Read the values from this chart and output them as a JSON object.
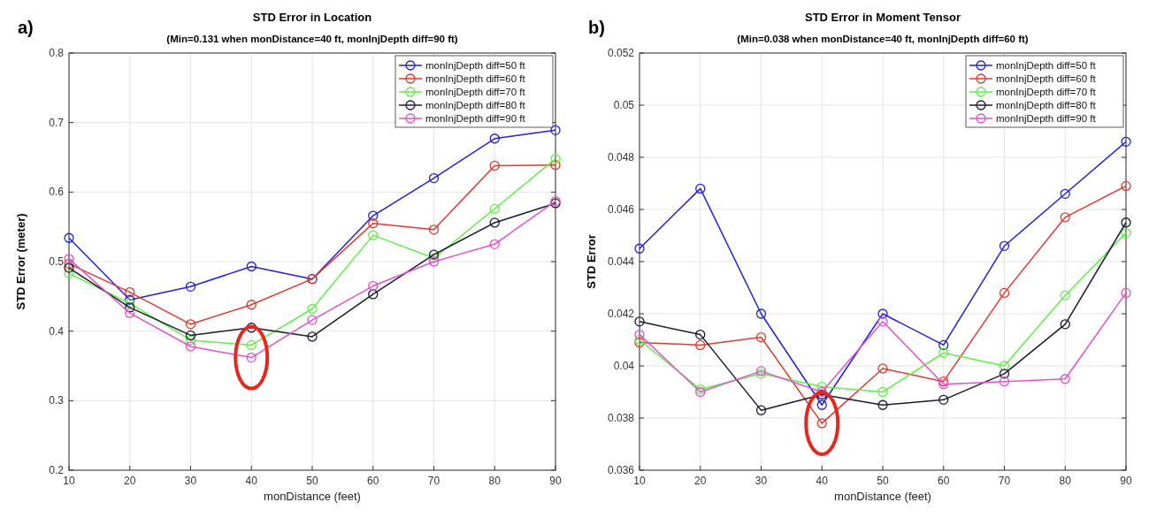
{
  "chart_data": [
    {
      "type": "line",
      "title": "STD Error in Location",
      "subtitle": "(Min=0.131 when monDistance=40 ft, monInjDepth diff=90 ft)",
      "xlabel": "monDistance (feet)",
      "ylabel": "STD Error (meter)",
      "annotations": [
        "a)"
      ],
      "x": [
        10,
        20,
        30,
        40,
        50,
        60,
        70,
        80,
        90
      ],
      "xlim": [
        10,
        90
      ],
      "xticks": [
        10,
        20,
        30,
        40,
        50,
        60,
        70,
        80,
        90
      ],
      "ylim": [
        0.2,
        0.8
      ],
      "yticks": [
        0.2,
        0.3,
        0.4,
        0.5,
        0.6,
        0.7,
        0.8
      ],
      "grid": true,
      "legend": "top right",
      "marker": "circle",
      "line_style": "solid",
      "series": [
        {
          "name": "monInjDepth diff=50 ft",
          "color": "#1f1fe6",
          "values": [
            0.534,
            0.445,
            0.464,
            0.493,
            0.475,
            0.566,
            0.62,
            0.677,
            0.689
          ]
        },
        {
          "name": "monInjDepth diff=60 ft",
          "color": "#e6372b",
          "values": [
            0.497,
            0.456,
            0.41,
            0.438,
            0.475,
            0.555,
            0.546,
            0.638,
            0.639
          ]
        },
        {
          "name": "monInjDepth diff=70 ft",
          "color": "#5ef046",
          "values": [
            0.483,
            0.44,
            0.387,
            0.38,
            0.432,
            0.538,
            0.505,
            0.576,
            0.648
          ]
        },
        {
          "name": "monInjDepth diff=80 ft",
          "color": "#1a1a2e",
          "values": [
            0.491,
            0.434,
            0.394,
            0.405,
            0.392,
            0.453,
            0.51,
            0.556,
            0.584
          ]
        },
        {
          "name": "monInjDepth diff=90 ft",
          "color": "#e64fd0",
          "values": [
            0.504,
            0.426,
            0.378,
            0.362,
            0.416,
            0.465,
            0.5,
            0.525,
            0.587
          ]
        }
      ]
    },
    {
      "type": "line",
      "title": "STD Error in Moment Tensor",
      "subtitle": "(Min=0.038 when monDistance=40 ft, monInjDepth diff=60 ft)",
      "xlabel": "monDistance (feet)",
      "ylabel": "STD Error",
      "annotations": [
        "b)"
      ],
      "x": [
        10,
        20,
        30,
        40,
        50,
        60,
        70,
        80,
        90
      ],
      "xlim": [
        10,
        90
      ],
      "xticks": [
        10,
        20,
        30,
        40,
        50,
        60,
        70,
        80,
        90
      ],
      "ylim": [
        0.036,
        0.052
      ],
      "yticks": [
        0.036,
        0.038,
        {
          "value": 0.04,
          "label": "0.04"
        },
        0.042,
        0.044,
        0.046,
        0.048,
        {
          "value": 0.05,
          "label": "0.05"
        },
        0.052
      ],
      "grid": true,
      "legend": "top right",
      "marker": "circle",
      "line_style": "solid",
      "series": [
        {
          "name": "monInjDepth diff=50 ft",
          "color": "#1f1fe6",
          "values": [
            0.0445,
            0.0468,
            0.042,
            0.0385,
            0.042,
            0.0408,
            0.0446,
            0.0466,
            0.0486
          ]
        },
        {
          "name": "monInjDepth diff=60 ft",
          "color": "#e6372b",
          "values": [
            0.0409,
            0.0408,
            0.0411,
            0.0378,
            0.0399,
            0.0394,
            0.0428,
            0.0457,
            0.0469
          ]
        },
        {
          "name": "monInjDepth diff=70 ft",
          "color": "#5ef046",
          "values": [
            0.041,
            0.0391,
            0.0397,
            0.0392,
            0.039,
            0.0405,
            0.04,
            0.0427,
            0.0451
          ]
        },
        {
          "name": "monInjDepth diff=80 ft",
          "color": "#1a1a2e",
          "values": [
            0.0417,
            0.0412,
            0.0383,
            0.0389,
            0.0385,
            0.0387,
            0.0397,
            0.0416,
            0.0455
          ]
        },
        {
          "name": "monInjDepth diff=90 ft",
          "color": "#e64fd0",
          "values": [
            0.0412,
            0.039,
            0.0398,
            0.039,
            0.0417,
            0.0393,
            0.0394,
            0.0395,
            0.0428
          ]
        }
      ]
    }
  ]
}
